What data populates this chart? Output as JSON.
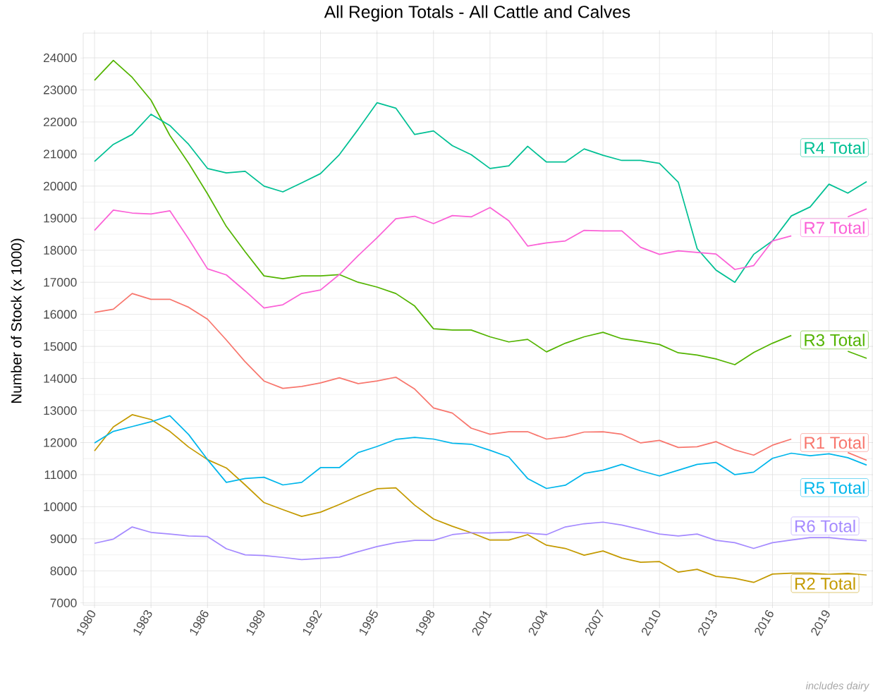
{
  "chart_data": {
    "type": "line",
    "title": "All Region Totals - All Cattle and Calves",
    "ylabel": "Number of Stock (x 1000)",
    "annotations": [
      "includes dairy"
    ],
    "x": [
      1980,
      1981,
      1982,
      1983,
      1984,
      1985,
      1986,
      1987,
      1988,
      1989,
      1990,
      1991,
      1992,
      1993,
      1994,
      1995,
      1996,
      1997,
      1998,
      1999,
      2000,
      2001,
      2002,
      2003,
      2004,
      2005,
      2006,
      2007,
      2008,
      2009,
      2010,
      2011,
      2012,
      2013,
      2014,
      2015,
      2016,
      2017,
      2018,
      2019,
      2020,
      2021
    ],
    "series": [
      {
        "name": "R1 Total",
        "color": "#f8766d",
        "values": [
          16060,
          16160,
          16650,
          16470,
          16470,
          16220,
          15850,
          15200,
          14520,
          13920,
          13690,
          13750,
          13860,
          14020,
          13840,
          13920,
          14040,
          13670,
          13080,
          12920,
          12450,
          12260,
          12340,
          12340,
          12110,
          12180,
          12330,
          12340,
          12260,
          11990,
          12070,
          11850,
          11870,
          12030,
          11770,
          11610,
          11920,
          12110,
          null,
          null,
          11690,
          11450
        ]
      },
      {
        "name": "R2 Total",
        "color": "#c49a00",
        "values": [
          11740,
          12490,
          12870,
          12720,
          12350,
          11860,
          11470,
          11210,
          10680,
          10130,
          9910,
          9700,
          9830,
          10070,
          10330,
          10560,
          10590,
          10050,
          9620,
          9390,
          9190,
          8960,
          8960,
          9130,
          8800,
          8700,
          8490,
          8620,
          8400,
          8270,
          8290,
          7960,
          8050,
          7830,
          7770,
          7640,
          7900,
          7930,
          7930,
          7890,
          7920,
          7870
        ]
      },
      {
        "name": "R3 Total",
        "color": "#53b400",
        "values": [
          23300,
          23920,
          23390,
          22680,
          21580,
          20710,
          19760,
          18740,
          17950,
          17200,
          17110,
          17200,
          17200,
          17240,
          17000,
          16850,
          16650,
          16260,
          15550,
          15510,
          15510,
          15300,
          15140,
          15220,
          14830,
          15100,
          15300,
          15440,
          15240,
          15160,
          15060,
          14800,
          14730,
          14610,
          14430,
          14810,
          15100,
          15340,
          null,
          null,
          14850,
          14630
        ]
      },
      {
        "name": "R4 Total",
        "color": "#00c094",
        "values": [
          20770,
          21300,
          21610,
          22240,
          21890,
          21300,
          20550,
          20410,
          20460,
          20000,
          19820,
          20100,
          20390,
          20980,
          21770,
          22600,
          22430,
          21610,
          21720,
          21260,
          20980,
          20550,
          20630,
          21240,
          20750,
          20750,
          21160,
          20960,
          20800,
          20800,
          20710,
          20120,
          18050,
          17380,
          17000,
          17870,
          18290,
          19070,
          19350,
          20060,
          19780,
          20140
        ]
      },
      {
        "name": "R5 Total",
        "color": "#00b6eb",
        "values": [
          11990,
          12350,
          12500,
          12650,
          12840,
          12250,
          11470,
          10760,
          10880,
          10920,
          10680,
          10760,
          11220,
          11220,
          11690,
          11880,
          12100,
          12160,
          12110,
          11980,
          11950,
          11760,
          11550,
          10880,
          10570,
          10670,
          11040,
          11140,
          11320,
          11120,
          10960,
          11140,
          11320,
          11380,
          11000,
          11080,
          11510,
          11670,
          11590,
          11650,
          11530,
          11300
        ]
      },
      {
        "name": "R6 Total",
        "color": "#a58aff",
        "values": [
          8860,
          8990,
          9370,
          9200,
          9150,
          9090,
          9070,
          8690,
          8500,
          8480,
          8420,
          8350,
          8390,
          8430,
          8600,
          8760,
          8880,
          8950,
          8950,
          9130,
          9190,
          9180,
          9210,
          9180,
          9130,
          9370,
          9470,
          9520,
          9430,
          9290,
          9150,
          9090,
          9150,
          8950,
          8880,
          8700,
          8880,
          8960,
          9040,
          9040,
          8980,
          8940
        ]
      },
      {
        "name": "R7 Total",
        "color": "#fb61d7",
        "values": [
          18620,
          19250,
          19160,
          19130,
          19230,
          18350,
          17420,
          17230,
          16730,
          16200,
          16300,
          16650,
          16760,
          17240,
          17830,
          18390,
          18980,
          19060,
          18830,
          19080,
          19040,
          19330,
          18920,
          18130,
          18230,
          18290,
          18620,
          18600,
          18600,
          18090,
          17870,
          17980,
          17930,
          17880,
          17400,
          17520,
          18290,
          18450,
          null,
          null,
          19040,
          19290
        ]
      }
    ],
    "xlim": [
      1979.4,
      2021.3
    ],
    "ylim": [
      6930,
      24770
    ],
    "xticks": [
      1980,
      1983,
      1986,
      1989,
      1992,
      1995,
      1998,
      2001,
      2004,
      2007,
      2010,
      2013,
      2016,
      2019
    ],
    "yticks": [
      7000,
      8000,
      9000,
      10000,
      11000,
      12000,
      13000,
      14000,
      15000,
      16000,
      17000,
      18000,
      19000,
      20000,
      21000,
      22000,
      23000,
      24000
    ],
    "grid": true,
    "legend": "right"
  }
}
